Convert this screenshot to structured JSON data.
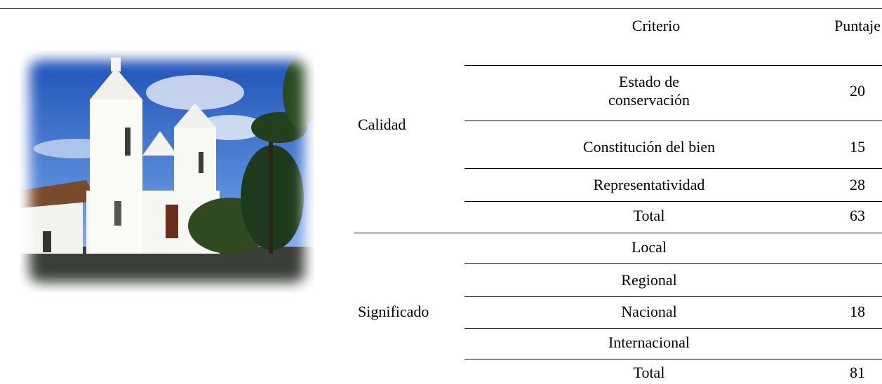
{
  "header": {
    "criterio": "Criterio",
    "puntaje": "Puntaje"
  },
  "groups": [
    {
      "label": "Calidad",
      "rows": [
        {
          "criterio": "Estado de conservación",
          "puntaje": 20
        },
        {
          "criterio": "Constitución del bien",
          "puntaje": 15
        },
        {
          "criterio": "Representatividad",
          "puntaje": 28
        },
        {
          "criterio": "Total",
          "puntaje": 63
        }
      ]
    },
    {
      "label": "Significado",
      "rows": [
        {
          "criterio": "Local"
        },
        {
          "criterio": "Regional"
        },
        {
          "criterio": "Nacional",
          "puntaje": 18
        },
        {
          "criterio": "Internacional"
        },
        {
          "criterio": "Total",
          "puntaje": 81
        }
      ]
    }
  ]
}
